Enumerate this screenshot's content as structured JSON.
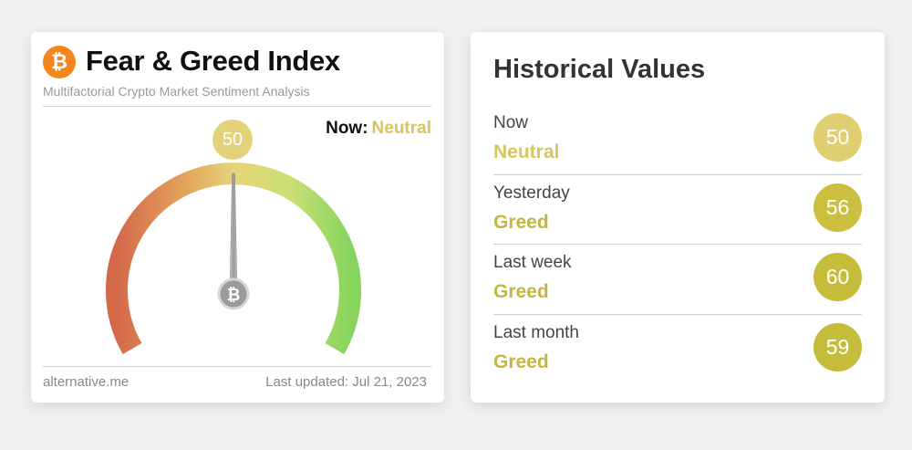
{
  "left_card": {
    "title": "Fear & Greed Index",
    "subtitle": "Multifactorial Crypto Market Sentiment Analysis",
    "logo_symbol": "₿",
    "logo_icon": "bitcoin-icon",
    "now_label": "Now:",
    "now_value": "Neutral",
    "index_value": "50",
    "index_value_numeric": 50,
    "gauge_min": 0,
    "gauge_max": 100,
    "needle_hub_symbol": "₿",
    "footer_source": "alternative.me",
    "footer_updated": "Last updated: Jul 21, 2023"
  },
  "right_card": {
    "title": "Historical Values",
    "rows": [
      {
        "period": "Now",
        "classification": "Neutral",
        "value": "50",
        "color": "#e0cf72",
        "text_color": "#d9c55f"
      },
      {
        "period": "Yesterday",
        "classification": "Greed",
        "value": "56",
        "color": "#cbbf3f",
        "text_color": "#c4b63e"
      },
      {
        "period": "Last week",
        "classification": "Greed",
        "value": "60",
        "color": "#c5bd3a",
        "text_color": "#c4b63e"
      },
      {
        "period": "Last month",
        "classification": "Greed",
        "value": "59",
        "color": "#c5bd3a",
        "text_color": "#c4b63e"
      }
    ]
  },
  "colors": {
    "background": "#f0f0f1",
    "card": "#ffffff",
    "neutral": "#d9c55f",
    "greed": "#c4b63e",
    "bitcoin_orange": "#f3871d",
    "gauge_fear": "#d4694a",
    "gauge_neutral": "#e3d27a",
    "gauge_greed": "#8fd463"
  }
}
